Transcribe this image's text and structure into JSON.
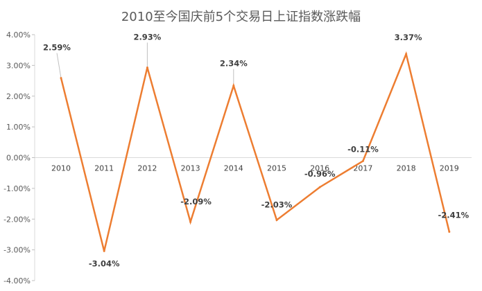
{
  "chart_data": {
    "type": "line",
    "title": "2010至今国庆前5个交易日上证指数涨跌幅",
    "xlabel": "",
    "ylabel": "",
    "categories": [
      "2010",
      "2011",
      "2012",
      "2013",
      "2014",
      "2015",
      "2016",
      "2017",
      "2018",
      "2019"
    ],
    "values": [
      2.59,
      -3.04,
      2.93,
      -2.09,
      2.34,
      -2.03,
      -0.96,
      -0.11,
      3.37,
      -2.41
    ],
    "data_labels": [
      "2.59%",
      "-3.04%",
      "2.93%",
      "-2.09%",
      "2.34%",
      "-2.03%",
      "-0.96%",
      "-0.11%",
      "3.37%",
      "-2.41%"
    ],
    "ylim": [
      -4,
      4
    ],
    "y_ticks": [
      4,
      3,
      2,
      1,
      0,
      -1,
      -2,
      -3,
      -4
    ],
    "y_tick_labels": [
      "4.00%",
      "3.00%",
      "2.00%",
      "1.00%",
      "0.00%",
      "-1.00%",
      "-2.00%",
      "-3.00%",
      "-4.00%"
    ],
    "grid": false,
    "legend": "none",
    "line_color": "#ED7D31"
  }
}
